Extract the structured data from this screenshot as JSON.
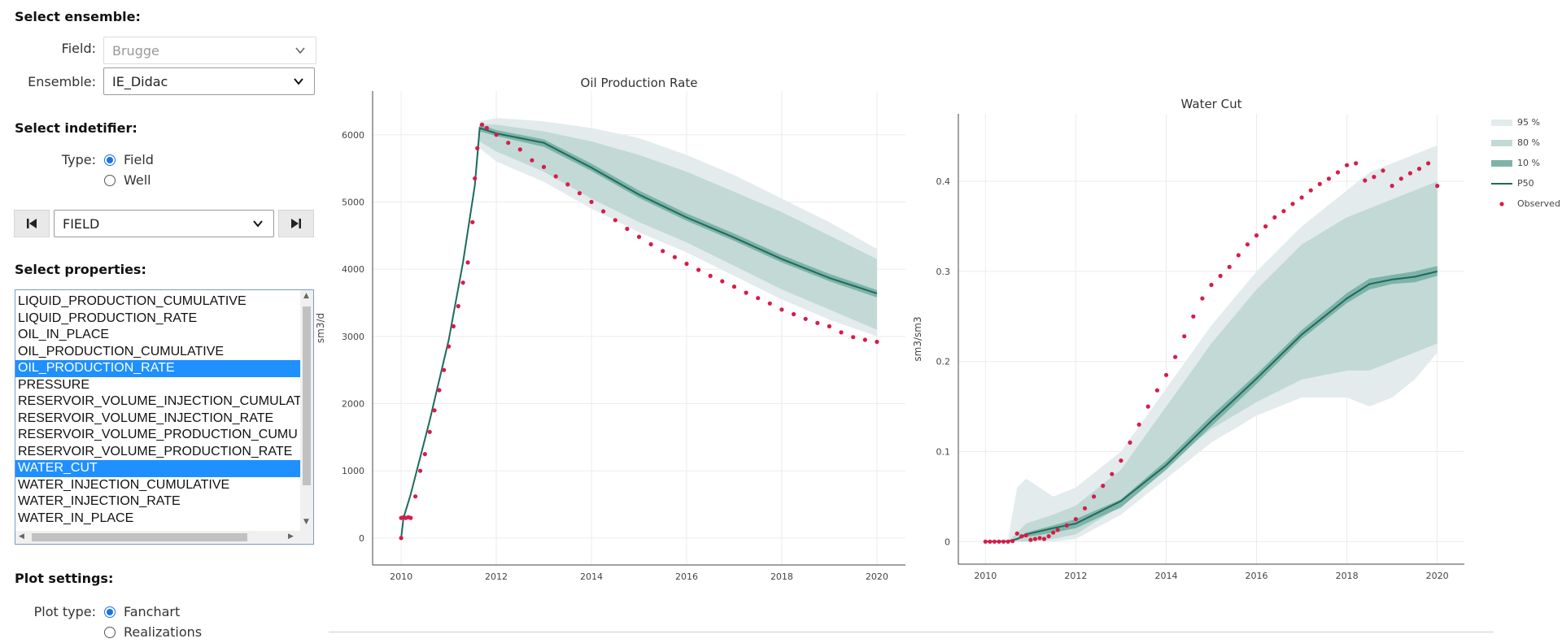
{
  "sidebar": {
    "select_ensemble_heading": "Select ensemble:",
    "field_label": "Field:",
    "field_value": "Brugge",
    "ensemble_label": "Ensemble:",
    "ensemble_value": "IE_Didac",
    "select_identifier_heading": "Select indetifier:",
    "type_label": "Type:",
    "type_options": [
      {
        "label": "Field",
        "checked": true
      },
      {
        "label": "Well",
        "checked": false
      }
    ],
    "identifier_value": "FIELD",
    "select_properties_heading": "Select properties:",
    "properties": [
      {
        "label": "LIQUID_PRODUCTION_CUMULATIVE",
        "selected": false
      },
      {
        "label": "LIQUID_PRODUCTION_RATE",
        "selected": false
      },
      {
        "label": "OIL_IN_PLACE",
        "selected": false
      },
      {
        "label": "OIL_PRODUCTION_CUMULATIVE",
        "selected": false
      },
      {
        "label": "OIL_PRODUCTION_RATE",
        "selected": true
      },
      {
        "label": "PRESSURE",
        "selected": false
      },
      {
        "label": "RESERVOIR_VOLUME_INJECTION_CUMULAT",
        "selected": false
      },
      {
        "label": "RESERVOIR_VOLUME_INJECTION_RATE",
        "selected": false
      },
      {
        "label": "RESERVOIR_VOLUME_PRODUCTION_CUMU",
        "selected": false
      },
      {
        "label": "RESERVOIR_VOLUME_PRODUCTION_RATE",
        "selected": false
      },
      {
        "label": "WATER_CUT",
        "selected": true
      },
      {
        "label": "WATER_INJECTION_CUMULATIVE",
        "selected": false
      },
      {
        "label": "WATER_INJECTION_RATE",
        "selected": false
      },
      {
        "label": "WATER_IN_PLACE",
        "selected": false
      }
    ],
    "plot_settings_heading": "Plot settings:",
    "plot_type_label": "Plot type:",
    "plot_type_options": [
      {
        "label": "Fanchart",
        "checked": true
      },
      {
        "label": "Realizations",
        "checked": false
      }
    ]
  },
  "colors": {
    "p95": "#e3ebec",
    "p80": "#c2d9d6",
    "p10": "#7fb3a9",
    "p50": "#1d6b5a",
    "observed": "#d81b4a",
    "accent": "#1e90ff"
  },
  "legend": {
    "items": [
      {
        "label": "95 %",
        "kind": "p95"
      },
      {
        "label": "80 %",
        "kind": "p80"
      },
      {
        "label": "10 %",
        "kind": "p10"
      },
      {
        "label": "P50",
        "kind": "p50"
      },
      {
        "label": "Observed",
        "kind": "observed"
      }
    ]
  },
  "chart_data": [
    {
      "type": "line",
      "title": "Oil Production Rate",
      "xlabel": "",
      "ylabel": "sm3/d",
      "xlim": [
        2009.4,
        2020.6
      ],
      "ylim": [
        -400,
        6650
      ],
      "xticks": [
        2010,
        2012,
        2014,
        2016,
        2018,
        2020
      ],
      "xtick_labels": [
        "2010",
        "2012",
        "2014",
        "2016",
        "2018",
        "2020"
      ],
      "yticks": [
        0,
        1000,
        2000,
        3000,
        4000,
        5000,
        6000
      ],
      "ytick_labels": [
        "0",
        "1000",
        "2000",
        "3000",
        "4000",
        "5000",
        "6000"
      ],
      "x": [
        2010,
        2010.05,
        2010.2,
        2010.6,
        2011.0,
        2011.3,
        2011.55,
        2011.65,
        2012,
        2013,
        2014,
        2015,
        2016,
        2017,
        2018,
        2019,
        2020
      ],
      "bands": {
        "p95": {
          "low": [
            0,
            300,
            650,
            1750,
            2950,
            4100,
            5250,
            5800,
            5600,
            5300,
            4900,
            4550,
            4250,
            3900,
            3550,
            3250,
            3000
          ],
          "high": [
            0,
            300,
            650,
            1750,
            2950,
            4100,
            5250,
            6200,
            6250,
            6200,
            6100,
            5950,
            5700,
            5400,
            5050,
            4700,
            4300
          ]
        },
        "p80": {
          "low": [
            0,
            300,
            650,
            1750,
            2950,
            4100,
            5250,
            5900,
            5750,
            5450,
            5050,
            4700,
            4400,
            4050,
            3700,
            3400,
            3100
          ],
          "high": [
            0,
            300,
            650,
            1750,
            2950,
            4100,
            5250,
            6150,
            6150,
            6050,
            5900,
            5700,
            5450,
            5150,
            4850,
            4500,
            4150
          ]
        },
        "p10": {
          "low": [
            0,
            300,
            650,
            1750,
            2950,
            4100,
            5250,
            6050,
            5980,
            5820,
            5460,
            5060,
            4720,
            4420,
            4100,
            3820,
            3580
          ],
          "high": [
            0,
            300,
            650,
            1750,
            2950,
            4100,
            5250,
            6150,
            6070,
            5930,
            5570,
            5170,
            4830,
            4530,
            4210,
            3930,
            3690
          ]
        }
      },
      "p50": [
        0,
        300,
        650,
        1750,
        2950,
        4100,
        5250,
        6100,
        6020,
        5880,
        5510,
        5110,
        4770,
        4470,
        4150,
        3870,
        3640
      ],
      "observed": {
        "x": [
          2010,
          2010.0,
          2010.05,
          2010.1,
          2010.15,
          2010.2,
          2010.3,
          2010.4,
          2010.5,
          2010.6,
          2010.7,
          2010.8,
          2010.9,
          2011.0,
          2011.1,
          2011.2,
          2011.3,
          2011.4,
          2011.5,
          2011.55,
          2011.6,
          2011.7,
          2011.8,
          2012.0,
          2012.25,
          2012.5,
          2012.75,
          2013.0,
          2013.25,
          2013.5,
          2013.75,
          2014.0,
          2014.25,
          2014.5,
          2014.75,
          2015.0,
          2015.25,
          2015.5,
          2015.75,
          2016.0,
          2016.25,
          2016.5,
          2016.75,
          2017.0,
          2017.25,
          2017.5,
          2017.75,
          2018.0,
          2018.25,
          2018.5,
          2018.75,
          2019.0,
          2019.25,
          2019.5,
          2019.75,
          2020.0
        ],
        "y": [
          0,
          300,
          310,
          300,
          310,
          300,
          620,
          1000,
          1250,
          1580,
          1900,
          2200,
          2500,
          2850,
          3150,
          3450,
          3800,
          4100,
          4700,
          5350,
          5800,
          6150,
          6100,
          6000,
          5880,
          5780,
          5620,
          5520,
          5380,
          5260,
          5130,
          5000,
          4860,
          4730,
          4600,
          4480,
          4370,
          4270,
          4180,
          4080,
          3990,
          3900,
          3820,
          3740,
          3650,
          3570,
          3490,
          3400,
          3330,
          3260,
          3200,
          3150,
          3060,
          2990,
          2950,
          2920
        ]
      }
    },
    {
      "type": "line",
      "title": "Water Cut",
      "xlabel": "",
      "ylabel": "sm3/sm3",
      "xlim": [
        2009.4,
        2020.6
      ],
      "ylim": [
        -0.025,
        0.475
      ],
      "xticks": [
        2010,
        2012,
        2014,
        2016,
        2018,
        2020
      ],
      "xtick_labels": [
        "2010",
        "2012",
        "2014",
        "2016",
        "2018",
        "2020"
      ],
      "yticks": [
        0,
        0.1,
        0.2,
        0.3,
        0.4
      ],
      "ytick_labels": [
        "0",
        "0.1",
        "0.2",
        "0.3",
        "0.4"
      ],
      "x": [
        2010,
        2010.5,
        2010.7,
        2010.9,
        2011.5,
        2012,
        2013,
        2014,
        2015,
        2016,
        2017,
        2018,
        2018.5,
        2019,
        2019.5,
        2020
      ],
      "bands": {
        "p95": {
          "low": [
            0,
            0,
            0,
            0,
            0,
            0.003,
            0.03,
            0.07,
            0.11,
            0.14,
            0.16,
            0.16,
            0.15,
            0.16,
            0.18,
            0.21
          ],
          "high": [
            0,
            0.002,
            0.06,
            0.07,
            0.05,
            0.06,
            0.1,
            0.17,
            0.24,
            0.3,
            0.35,
            0.39,
            0.41,
            0.42,
            0.43,
            0.44
          ]
        },
        "p80": {
          "low": [
            0,
            0,
            0,
            0,
            0.003,
            0.008,
            0.04,
            0.085,
            0.125,
            0.155,
            0.18,
            0.19,
            0.19,
            0.2,
            0.21,
            0.22
          ],
          "high": [
            0,
            0,
            0.01,
            0.02,
            0.03,
            0.04,
            0.08,
            0.15,
            0.22,
            0.28,
            0.33,
            0.36,
            0.37,
            0.38,
            0.39,
            0.4
          ]
        },
        "p10": {
          "low": [
            0,
            0,
            0.002,
            0.005,
            0.01,
            0.015,
            0.038,
            0.08,
            0.128,
            0.175,
            0.225,
            0.265,
            0.28,
            0.286,
            0.288,
            0.295
          ],
          "high": [
            0,
            0.001,
            0.004,
            0.01,
            0.018,
            0.025,
            0.047,
            0.09,
            0.14,
            0.186,
            0.235,
            0.276,
            0.292,
            0.296,
            0.3,
            0.306
          ]
        }
      },
      "p50": [
        0,
        0.0005,
        0.003,
        0.008,
        0.015,
        0.02,
        0.045,
        0.085,
        0.134,
        0.181,
        0.23,
        0.27,
        0.286,
        0.291,
        0.294,
        0.3
      ],
      "observed": {
        "x": [
          2010,
          2010.1,
          2010.2,
          2010.3,
          2010.4,
          2010.5,
          2010.6,
          2010.7,
          2010.8,
          2010.9,
          2011.0,
          2011.1,
          2011.2,
          2011.3,
          2011.4,
          2011.5,
          2011.6,
          2011.8,
          2012.0,
          2012.2,
          2012.4,
          2012.6,
          2012.8,
          2013.0,
          2013.2,
          2013.4,
          2013.6,
          2013.8,
          2014.0,
          2014.2,
          2014.4,
          2014.6,
          2014.8,
          2015.0,
          2015.2,
          2015.4,
          2015.6,
          2015.8,
          2016.0,
          2016.2,
          2016.4,
          2016.6,
          2016.8,
          2017.0,
          2017.2,
          2017.4,
          2017.6,
          2017.8,
          2018.0,
          2018.2,
          2018.4,
          2018.6,
          2018.8,
          2019.0,
          2019.2,
          2019.4,
          2019.6,
          2019.8,
          2020.0
        ],
        "y": [
          0,
          0,
          0,
          0,
          0,
          0,
          0.0005,
          0.009,
          0.006,
          0.007,
          0.002,
          0.003,
          0.004,
          0.003,
          0.006,
          0.01,
          0.013,
          0.018,
          0.025,
          0.037,
          0.05,
          0.062,
          0.075,
          0.09,
          0.11,
          0.13,
          0.15,
          0.168,
          0.185,
          0.205,
          0.228,
          0.25,
          0.27,
          0.285,
          0.295,
          0.305,
          0.318,
          0.33,
          0.34,
          0.35,
          0.36,
          0.367,
          0.375,
          0.382,
          0.39,
          0.397,
          0.403,
          0.41,
          0.418,
          0.42,
          0.401,
          0.405,
          0.412,
          0.395,
          0.403,
          0.409,
          0.414,
          0.42,
          0.395
        ]
      }
    }
  ]
}
